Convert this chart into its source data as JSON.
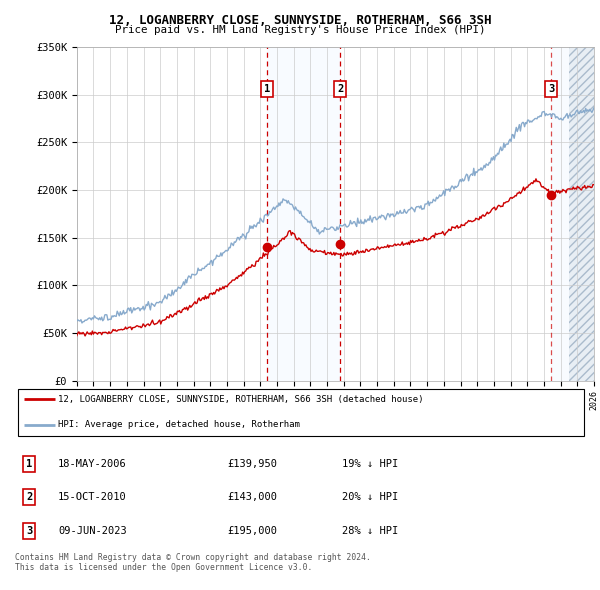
{
  "title1": "12, LOGANBERRY CLOSE, SUNNYSIDE, ROTHERHAM, S66 3SH",
  "title2": "Price paid vs. HM Land Registry's House Price Index (HPI)",
  "legend_label_red": "12, LOGANBERRY CLOSE, SUNNYSIDE, ROTHERHAM, S66 3SH (detached house)",
  "legend_label_blue": "HPI: Average price, detached house, Rotherham",
  "footer": "Contains HM Land Registry data © Crown copyright and database right 2024.\nThis data is licensed under the Open Government Licence v3.0.",
  "transactions": [
    {
      "num": 1,
      "date": "18-MAY-2006",
      "price": "£139,950",
      "hpi": "19% ↓ HPI",
      "year": 2006.38
    },
    {
      "num": 2,
      "date": "15-OCT-2010",
      "price": "£143,000",
      "hpi": "20% ↓ HPI",
      "year": 2010.79
    },
    {
      "num": 3,
      "date": "09-JUN-2023",
      "price": "£195,000",
      "hpi": "28% ↓ HPI",
      "year": 2023.44
    }
  ],
  "price_paid_values": [
    139950,
    143000,
    195000
  ],
  "price_paid_years": [
    2006.38,
    2010.79,
    2023.44
  ],
  "xmin": 1995,
  "xmax": 2026,
  "ymin": 0,
  "ymax": 350000,
  "yticks": [
    0,
    50000,
    100000,
    150000,
    200000,
    250000,
    300000,
    350000
  ],
  "ytick_labels": [
    "£0",
    "£50K",
    "£100K",
    "£150K",
    "£200K",
    "£250K",
    "£300K",
    "£350K"
  ],
  "color_red": "#cc0000",
  "color_blue": "#88aacc",
  "grid_color": "#cccccc",
  "shade_color": "#ddeeff",
  "hatch_region_start": 2024.5
}
